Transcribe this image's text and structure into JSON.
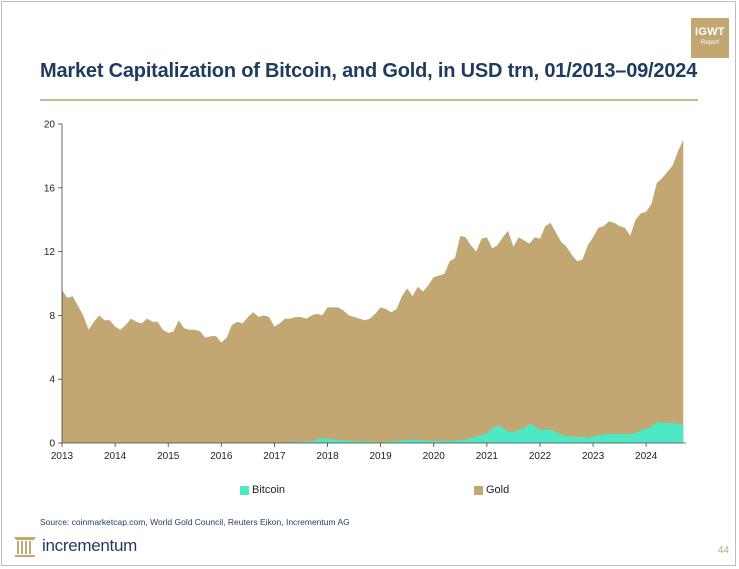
{
  "badge": {
    "line1": "IGWT",
    "line2": "Report"
  },
  "title": "Market Capitalization of Bitcoin, and Gold, in USD trn, 01/2013–09/2024",
  "source": "Source: coinmarketcap.com, World Gold Council, Reuters Eikon, Incrementum AG",
  "logo": {
    "text": "incrementum"
  },
  "page_number": "44",
  "colors": {
    "gold": "#c2a772",
    "bitcoin": "#4de8c4",
    "title": "#1f3b5f",
    "rule": "#c9b68a"
  },
  "chart_data": {
    "type": "area",
    "stacked": false,
    "title": "Market Capitalization of Bitcoin, and Gold, in USD trn, 01/2013–09/2024",
    "xlabel": "",
    "ylabel": "",
    "xlim": [
      2013.0,
      2024.75
    ],
    "ylim": [
      0,
      20
    ],
    "x_ticks": [
      2013,
      2014,
      2015,
      2016,
      2017,
      2018,
      2019,
      2020,
      2021,
      2022,
      2023,
      2024
    ],
    "y_ticks": [
      0,
      4,
      8,
      12,
      16,
      20
    ],
    "grid": false,
    "legend_position": "bottom",
    "series": [
      {
        "name": "Gold",
        "color": "#c2a772",
        "points": [
          [
            2013.0,
            9.6
          ],
          [
            2013.1,
            9.1
          ],
          [
            2013.2,
            9.2
          ],
          [
            2013.3,
            8.6
          ],
          [
            2013.4,
            8.0
          ],
          [
            2013.5,
            7.1
          ],
          [
            2013.6,
            7.6
          ],
          [
            2013.7,
            8.0
          ],
          [
            2013.8,
            7.7
          ],
          [
            2013.9,
            7.7
          ],
          [
            2014.0,
            7.3
          ],
          [
            2014.1,
            7.1
          ],
          [
            2014.2,
            7.4
          ],
          [
            2014.3,
            7.8
          ],
          [
            2014.4,
            7.6
          ],
          [
            2014.5,
            7.5
          ],
          [
            2014.6,
            7.8
          ],
          [
            2014.7,
            7.6
          ],
          [
            2014.8,
            7.6
          ],
          [
            2014.9,
            7.1
          ],
          [
            2015.0,
            6.9
          ],
          [
            2015.1,
            7.0
          ],
          [
            2015.2,
            7.7
          ],
          [
            2015.3,
            7.2
          ],
          [
            2015.4,
            7.1
          ],
          [
            2015.5,
            7.1
          ],
          [
            2015.6,
            7.0
          ],
          [
            2015.7,
            6.6
          ],
          [
            2015.8,
            6.7
          ],
          [
            2015.9,
            6.7
          ],
          [
            2016.0,
            6.3
          ],
          [
            2016.1,
            6.6
          ],
          [
            2016.2,
            7.4
          ],
          [
            2016.3,
            7.6
          ],
          [
            2016.4,
            7.5
          ],
          [
            2016.5,
            7.9
          ],
          [
            2016.6,
            8.2
          ],
          [
            2016.7,
            7.9
          ],
          [
            2016.8,
            8.0
          ],
          [
            2016.9,
            7.9
          ],
          [
            2017.0,
            7.3
          ],
          [
            2017.1,
            7.5
          ],
          [
            2017.2,
            7.8
          ],
          [
            2017.3,
            7.8
          ],
          [
            2017.4,
            7.9
          ],
          [
            2017.5,
            7.9
          ],
          [
            2017.6,
            7.8
          ],
          [
            2017.7,
            8.0
          ],
          [
            2017.8,
            8.1
          ],
          [
            2017.9,
            8.0
          ],
          [
            2018.0,
            8.5
          ],
          [
            2018.1,
            8.5
          ],
          [
            2018.2,
            8.5
          ],
          [
            2018.3,
            8.3
          ],
          [
            2018.4,
            8.0
          ],
          [
            2018.5,
            7.9
          ],
          [
            2018.6,
            7.8
          ],
          [
            2018.7,
            7.7
          ],
          [
            2018.8,
            7.8
          ],
          [
            2018.9,
            8.1
          ],
          [
            2019.0,
            8.5
          ],
          [
            2019.1,
            8.4
          ],
          [
            2019.2,
            8.2
          ],
          [
            2019.3,
            8.4
          ],
          [
            2019.4,
            9.2
          ],
          [
            2019.5,
            9.7
          ],
          [
            2019.6,
            9.2
          ],
          [
            2019.7,
            9.8
          ],
          [
            2019.8,
            9.5
          ],
          [
            2019.9,
            9.9
          ],
          [
            2020.0,
            10.4
          ],
          [
            2020.1,
            10.5
          ],
          [
            2020.2,
            10.6
          ],
          [
            2020.3,
            11.4
          ],
          [
            2020.4,
            11.6
          ],
          [
            2020.5,
            13.0
          ],
          [
            2020.6,
            12.9
          ],
          [
            2020.7,
            12.4
          ],
          [
            2020.8,
            12.0
          ],
          [
            2020.9,
            12.8
          ],
          [
            2021.0,
            12.9
          ],
          [
            2021.1,
            12.2
          ],
          [
            2021.2,
            12.4
          ],
          [
            2021.3,
            12.9
          ],
          [
            2021.4,
            13.3
          ],
          [
            2021.5,
            12.3
          ],
          [
            2021.6,
            12.9
          ],
          [
            2021.7,
            12.7
          ],
          [
            2021.8,
            12.5
          ],
          [
            2021.9,
            12.9
          ],
          [
            2022.0,
            12.8
          ],
          [
            2022.1,
            13.6
          ],
          [
            2022.2,
            13.8
          ],
          [
            2022.3,
            13.2
          ],
          [
            2022.4,
            12.6
          ],
          [
            2022.5,
            12.3
          ],
          [
            2022.6,
            11.8
          ],
          [
            2022.7,
            11.4
          ],
          [
            2022.8,
            11.5
          ],
          [
            2022.9,
            12.4
          ],
          [
            2023.0,
            12.9
          ],
          [
            2023.1,
            13.5
          ],
          [
            2023.2,
            13.6
          ],
          [
            2023.3,
            13.9
          ],
          [
            2023.4,
            13.8
          ],
          [
            2023.5,
            13.6
          ],
          [
            2023.6,
            13.5
          ],
          [
            2023.7,
            13.0
          ],
          [
            2023.8,
            14.0
          ],
          [
            2023.9,
            14.4
          ],
          [
            2024.0,
            14.5
          ],
          [
            2024.1,
            15.0
          ],
          [
            2024.2,
            16.3
          ],
          [
            2024.3,
            16.6
          ],
          [
            2024.4,
            17.0
          ],
          [
            2024.5,
            17.4
          ],
          [
            2024.6,
            18.3
          ],
          [
            2024.7,
            19.0
          ]
        ]
      },
      {
        "name": "Bitcoin",
        "color": "#4de8c4",
        "points": [
          [
            2013.0,
            0.0
          ],
          [
            2016.5,
            0.01
          ],
          [
            2017.0,
            0.02
          ],
          [
            2017.4,
            0.05
          ],
          [
            2017.7,
            0.1
          ],
          [
            2017.9,
            0.3
          ],
          [
            2018.0,
            0.25
          ],
          [
            2018.3,
            0.15
          ],
          [
            2018.6,
            0.12
          ],
          [
            2018.9,
            0.07
          ],
          [
            2019.0,
            0.06
          ],
          [
            2019.4,
            0.15
          ],
          [
            2019.6,
            0.2
          ],
          [
            2019.9,
            0.13
          ],
          [
            2020.2,
            0.12
          ],
          [
            2020.6,
            0.2
          ],
          [
            2020.9,
            0.5
          ],
          [
            2021.0,
            0.6
          ],
          [
            2021.1,
            0.9
          ],
          [
            2021.2,
            1.1
          ],
          [
            2021.3,
            1.0
          ],
          [
            2021.4,
            0.7
          ],
          [
            2021.5,
            0.65
          ],
          [
            2021.6,
            0.85
          ],
          [
            2021.7,
            0.9
          ],
          [
            2021.8,
            1.2
          ],
          [
            2021.9,
            1.1
          ],
          [
            2022.0,
            0.8
          ],
          [
            2022.2,
            0.85
          ],
          [
            2022.4,
            0.5
          ],
          [
            2022.6,
            0.4
          ],
          [
            2022.8,
            0.38
          ],
          [
            2022.9,
            0.32
          ],
          [
            2023.0,
            0.4
          ],
          [
            2023.2,
            0.55
          ],
          [
            2023.4,
            0.57
          ],
          [
            2023.6,
            0.55
          ],
          [
            2023.8,
            0.6
          ],
          [
            2023.9,
            0.8
          ],
          [
            2024.0,
            0.9
          ],
          [
            2024.1,
            1.0
          ],
          [
            2024.2,
            1.35
          ],
          [
            2024.3,
            1.25
          ],
          [
            2024.5,
            1.25
          ],
          [
            2024.6,
            1.2
          ],
          [
            2024.7,
            1.15
          ]
        ]
      }
    ]
  }
}
